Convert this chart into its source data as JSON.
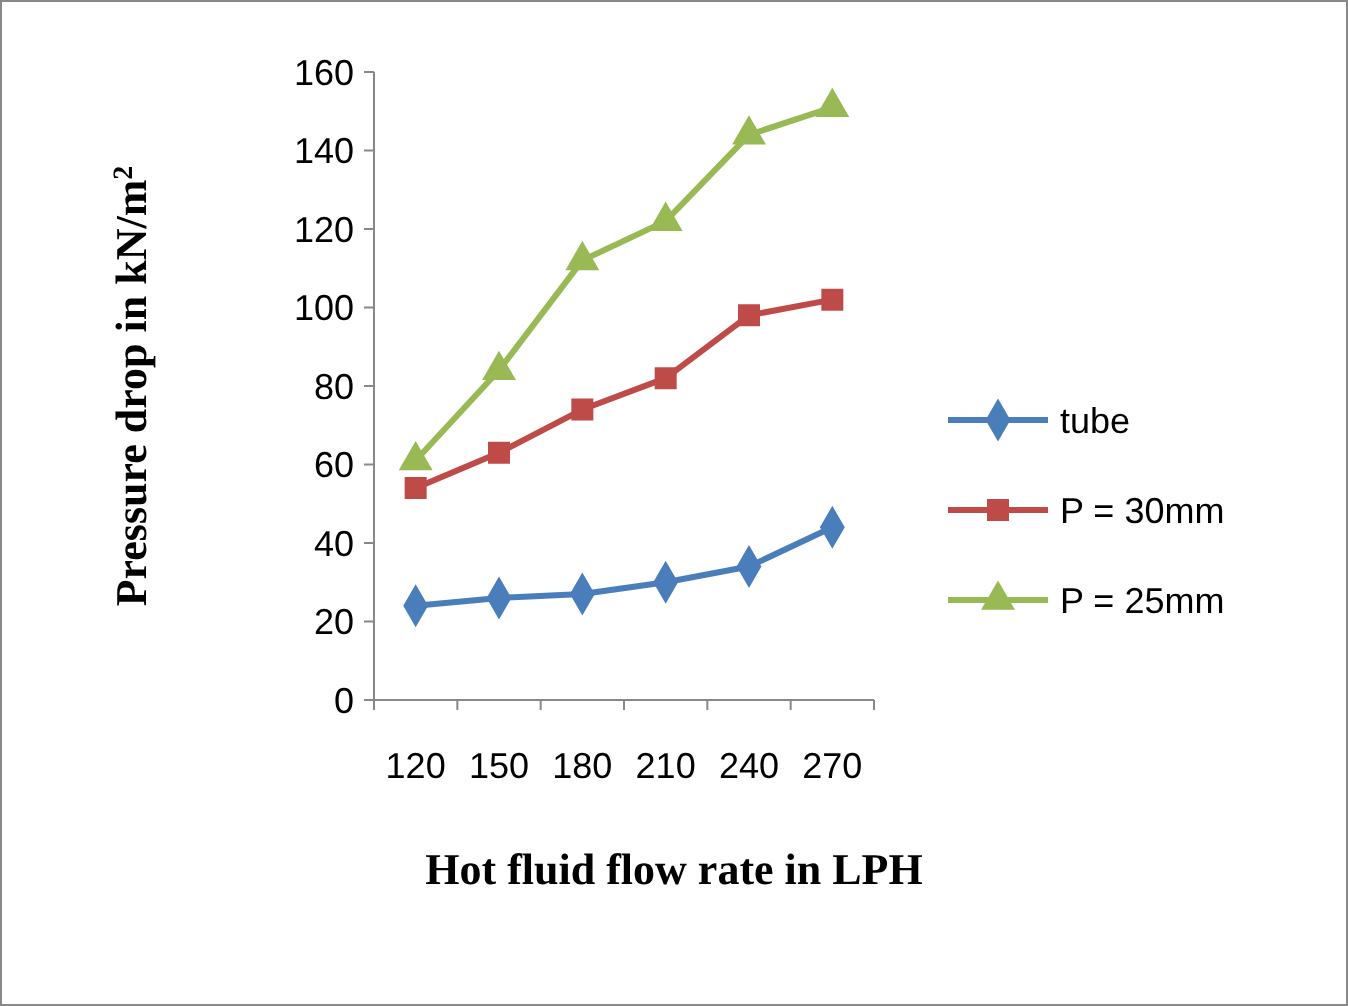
{
  "chart_data": {
    "type": "line",
    "xlabel": "Hot fluid flow rate in LPH",
    "ylabel": "Pressure drop in kN/m$^{2}$",
    "categories": [
      "120",
      "150",
      "180",
      "210",
      "240",
      "270"
    ],
    "series": [
      {
        "name": "tube",
        "color": "#4a7ebb",
        "marker": "diamond",
        "values": [
          24,
          26,
          27,
          30,
          34,
          44
        ]
      },
      {
        "name": "P = 30mm",
        "color": "#be4b48",
        "marker": "square",
        "values": [
          54,
          63,
          74,
          82,
          98,
          102
        ]
      },
      {
        "name": "P = 25mm",
        "color": "#98b954",
        "marker": "triangle",
        "values": [
          61,
          84,
          112,
          122,
          144,
          151
        ]
      }
    ],
    "ylim": [
      0,
      160
    ],
    "yticks": [
      0,
      20,
      40,
      60,
      80,
      100,
      120,
      140,
      160
    ],
    "grid": false,
    "legend": "right"
  }
}
